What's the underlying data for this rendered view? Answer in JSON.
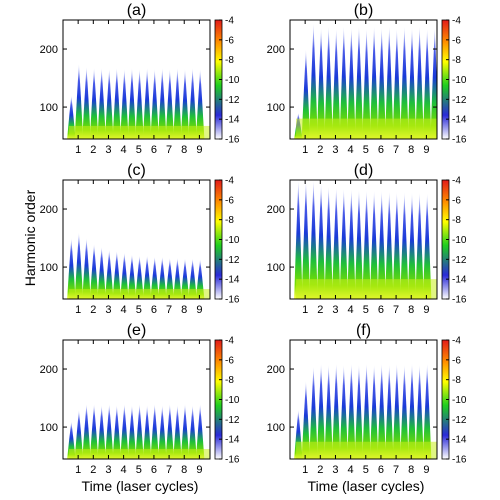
{
  "figure": {
    "ylabel": "Harmonic order",
    "xlabel": "Time (laser cycles)"
  },
  "colorbar": {
    "ticks": [
      -4,
      -6,
      -8,
      -10,
      -12,
      -14,
      -16
    ],
    "range": [
      -16,
      -4
    ],
    "colors": [
      "#ffffff",
      "#2a2ad8",
      "#1fcf1f",
      "#ffff00",
      "#ff8c00",
      "#e21b1b"
    ]
  },
  "chart_data": [
    {
      "type": "heatmap",
      "panel_label": "(a)",
      "xlabel": "",
      "ylabel": "",
      "x_ticks": [
        1,
        2,
        3,
        4,
        5,
        6,
        7,
        8,
        9
      ],
      "y_ticks": [
        100,
        200
      ],
      "xlim": [
        0,
        9.7
      ],
      "ylim": [
        45,
        250
      ],
      "crest_heights": [
        120,
        175,
        170,
        168,
        168,
        166,
        168,
        166,
        168,
        166,
        168,
        166,
        168,
        166,
        168,
        166,
        168,
        166
      ],
      "cutoff_typical": 170
    },
    {
      "type": "heatmap",
      "panel_label": "(b)",
      "xlabel": "",
      "ylabel": "",
      "x_ticks": [
        1,
        2,
        3,
        4,
        5,
        6,
        7,
        8,
        9
      ],
      "y_ticks": [
        100,
        200
      ],
      "xlim": [
        0,
        9.7
      ],
      "ylim": [
        45,
        250
      ],
      "crest_heights": [
        90,
        200,
        245,
        238,
        240,
        236,
        240,
        238,
        240,
        236,
        240,
        238,
        240,
        236,
        240,
        238,
        240,
        236,
        238
      ],
      "cutoff_typical": 240
    },
    {
      "type": "heatmap",
      "panel_label": "(c)",
      "xlabel": "",
      "ylabel": "",
      "x_ticks": [
        1,
        2,
        3,
        4,
        5,
        6,
        7,
        8,
        9
      ],
      "y_ticks": [
        100,
        200
      ],
      "xlim": [
        0,
        9.7
      ],
      "ylim": [
        45,
        250
      ],
      "crest_heights": [
        150,
        160,
        150,
        140,
        135,
        130,
        128,
        125,
        122,
        120,
        120,
        118,
        118,
        116,
        116,
        115,
        115,
        114
      ],
      "cutoff_typical": 140
    },
    {
      "type": "heatmap",
      "panel_label": "(d)",
      "xlabel": "",
      "ylabel": "",
      "x_ticks": [
        1,
        2,
        3,
        4,
        5,
        6,
        7,
        8,
        9
      ],
      "y_ticks": [
        100,
        200
      ],
      "xlim": [
        0,
        9.7
      ],
      "ylim": [
        45,
        250
      ],
      "crest_heights": [
        250,
        250,
        250,
        245,
        240,
        238,
        236,
        235,
        234,
        233,
        232,
        232,
        231,
        230,
        230,
        229,
        229,
        228
      ],
      "cutoff_typical": 235
    },
    {
      "type": "heatmap",
      "panel_label": "(e)",
      "xlabel": "Time (laser cycles)",
      "ylabel": "",
      "x_ticks": [
        1,
        2,
        3,
        4,
        5,
        6,
        7,
        8,
        9
      ],
      "y_ticks": [
        100,
        200
      ],
      "xlim": [
        0,
        9.7
      ],
      "ylim": [
        45,
        250
      ],
      "crest_heights": [
        110,
        130,
        140,
        140,
        138,
        140,
        138,
        140,
        138,
        140,
        138,
        140,
        138,
        140,
        138,
        140,
        138,
        140
      ],
      "cutoff_typical": 140
    },
    {
      "type": "heatmap",
      "panel_label": "(f)",
      "xlabel": "Time (laser cycles)",
      "ylabel": "",
      "x_ticks": [
        1,
        2,
        3,
        4,
        5,
        6,
        7,
        8,
        9
      ],
      "y_ticks": [
        100,
        200
      ],
      "xlim": [
        0,
        9.7
      ],
      "ylim": [
        45,
        250
      ],
      "crest_heights": [
        130,
        180,
        205,
        210,
        208,
        210,
        208,
        210,
        208,
        210,
        208,
        210,
        208,
        210,
        208,
        210,
        208,
        210
      ],
      "cutoff_typical": 210
    }
  ]
}
